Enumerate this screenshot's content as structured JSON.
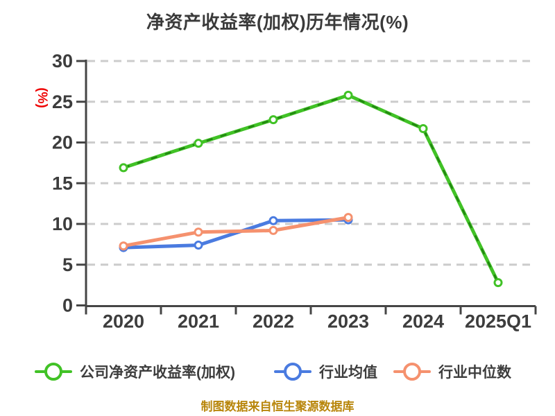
{
  "title": "净资产收益率(加权)历年情况(%)",
  "footer": "制图数据来自恒生聚源数据库",
  "colors": {
    "company": "#41c226",
    "company_dash_overlay": "#1e7e10",
    "industry_mean": "#4a7be0",
    "industry_median": "#f5916e",
    "grid": "#cccccc",
    "axis": "#454545",
    "tick_label": "#3d3d3d",
    "title": "#3a3a3a",
    "ylabel": "#ee0202",
    "footer": "#b8860b"
  },
  "chart_data": {
    "type": "line",
    "title": "净资产收益率(加权)历年情况(%)",
    "xlabel": "",
    "ylabel": "(%)",
    "categories": [
      "2020",
      "2021",
      "2022",
      "2023",
      "2024",
      "2025Q1"
    ],
    "series": [
      {
        "key": "company_roe",
        "name": "公司净资产收益率(加权)",
        "color": "#41c226",
        "dashed_overlay": true,
        "values": [
          16.9,
          19.9,
          22.8,
          25.8,
          21.7,
          2.8
        ]
      },
      {
        "key": "industry_mean",
        "name": "行业均值",
        "color": "#4a7be0",
        "dashed_overlay": false,
        "values": [
          7.1,
          7.4,
          10.4,
          10.5,
          null,
          null
        ]
      },
      {
        "key": "industry_median",
        "name": "行业中位数",
        "color": "#f5916e",
        "dashed_overlay": false,
        "values": [
          7.3,
          9.0,
          9.2,
          10.8,
          null,
          null
        ]
      }
    ],
    "yticks": [
      0,
      5,
      10,
      15,
      20,
      25,
      30
    ],
    "ylim": [
      0,
      30
    ],
    "grid": true,
    "grid_style": "dashed",
    "legend_position": "bottom",
    "marker": "circle-white-filled"
  }
}
